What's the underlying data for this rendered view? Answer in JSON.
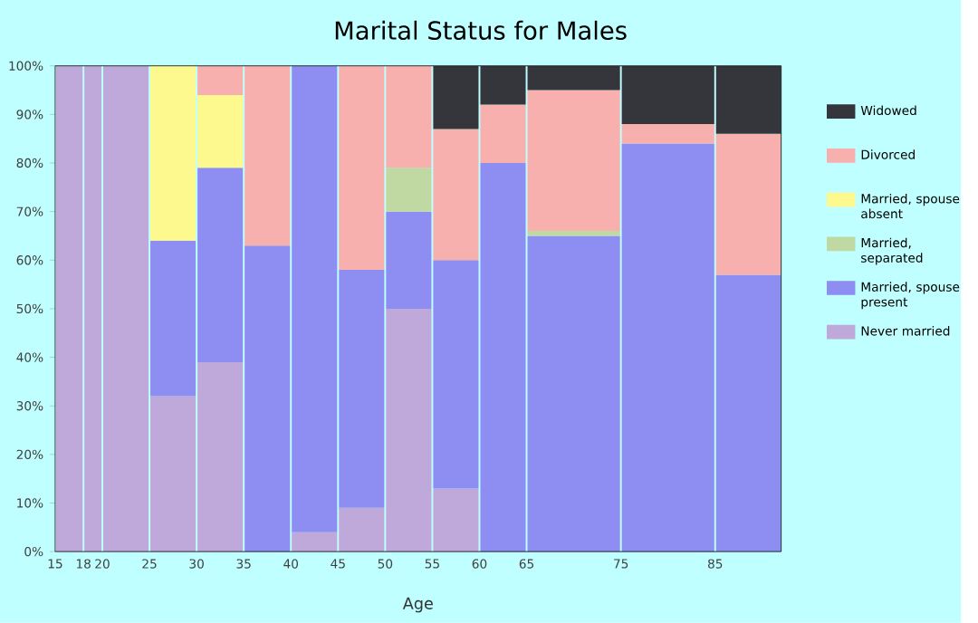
{
  "chart_data": {
    "type": "bar",
    "stacked": true,
    "title": "Marital Status for Males",
    "xlabel": "Age",
    "x": [
      16.5,
      19,
      22.5,
      27.5,
      32.5,
      37.5,
      42.5,
      47.5,
      52.5,
      57.5,
      62.5,
      70,
      80,
      88.5
    ],
    "xlim": [
      15,
      92
    ],
    "xticks": [
      15,
      18,
      20,
      25,
      30,
      35,
      40,
      45,
      50,
      55,
      60,
      65,
      75,
      85
    ],
    "ylim": [
      0,
      100
    ],
    "yticks": [
      {
        "value": 0,
        "label": "0%"
      },
      {
        "value": 10,
        "label": "10%"
      },
      {
        "value": 20,
        "label": "20%"
      },
      {
        "value": 30,
        "label": "30%"
      },
      {
        "value": 40,
        "label": "40%"
      },
      {
        "value": 50,
        "label": "50%"
      },
      {
        "value": 60,
        "label": "60%"
      },
      {
        "value": 70,
        "label": "70%"
      },
      {
        "value": 80,
        "label": "80%"
      },
      {
        "value": 90,
        "label": "90%"
      },
      {
        "value": 100,
        "label": "100%"
      }
    ],
    "grid": "x",
    "legend": "right",
    "series": [
      {
        "name": "Never married",
        "color": "#bfa8da",
        "values": [
          100,
          100,
          100,
          32,
          39,
          null,
          4,
          9,
          50,
          13,
          null,
          null,
          null,
          null
        ]
      },
      {
        "name": "Married, spouse present",
        "color": "#8e8ef2",
        "values": [
          null,
          null,
          null,
          32,
          40,
          63,
          96,
          49,
          20,
          47,
          80,
          65,
          84,
          57
        ]
      },
      {
        "name": "Married, separated",
        "color": "#c0d8a2",
        "values": [
          null,
          null,
          null,
          null,
          null,
          null,
          null,
          null,
          9,
          null,
          null,
          1,
          null,
          null
        ]
      },
      {
        "name": "Married, spouse absent",
        "color": "#fdf98f",
        "values": [
          null,
          null,
          null,
          36,
          15,
          null,
          null,
          null,
          null,
          null,
          null,
          null,
          null,
          null
        ]
      },
      {
        "name": "Divorced",
        "color": "#f8b0ae",
        "values": [
          null,
          null,
          null,
          null,
          6,
          37,
          null,
          42,
          21,
          27,
          12,
          29,
          4,
          29
        ]
      },
      {
        "name": "Widowed",
        "color": "#35363b",
        "values": [
          null,
          null,
          null,
          null,
          null,
          null,
          null,
          null,
          null,
          13,
          8,
          5,
          12,
          14
        ]
      }
    ]
  }
}
